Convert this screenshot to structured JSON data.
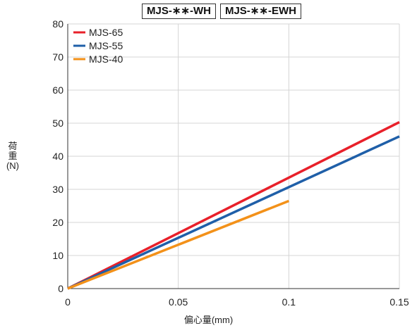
{
  "chart_data": {
    "type": "line",
    "title_boxes": [
      "MJS-∗∗-WH",
      "MJS-∗∗-EWH"
    ],
    "xlabel": "偏心量(mm)",
    "ylabel_lines": [
      "荷",
      "重",
      "(N)"
    ],
    "xlim": [
      0,
      0.15
    ],
    "ylim": [
      0,
      80
    ],
    "x_ticks": [
      0,
      0.05,
      0.1,
      0.15
    ],
    "x_tick_labels": [
      "0",
      "0.05",
      "0.1",
      "0.15"
    ],
    "y_ticks": [
      0,
      10,
      20,
      30,
      40,
      50,
      60,
      70,
      80
    ],
    "y_tick_labels": [
      "0",
      "10",
      "20",
      "30",
      "40",
      "50",
      "60",
      "70",
      "80"
    ],
    "grid": true,
    "legend_position": "top-left",
    "series": [
      {
        "name": "MJS-65",
        "color": "#e8202a",
        "x": [
          0,
          0.15
        ],
        "y": [
          0,
          50.3
        ]
      },
      {
        "name": "MJS-55",
        "color": "#1f5fa8",
        "x": [
          0,
          0.15
        ],
        "y": [
          0,
          46
        ]
      },
      {
        "name": "MJS-40",
        "color": "#f39119",
        "x": [
          0,
          0.1
        ],
        "y": [
          0,
          26.5
        ]
      }
    ]
  }
}
